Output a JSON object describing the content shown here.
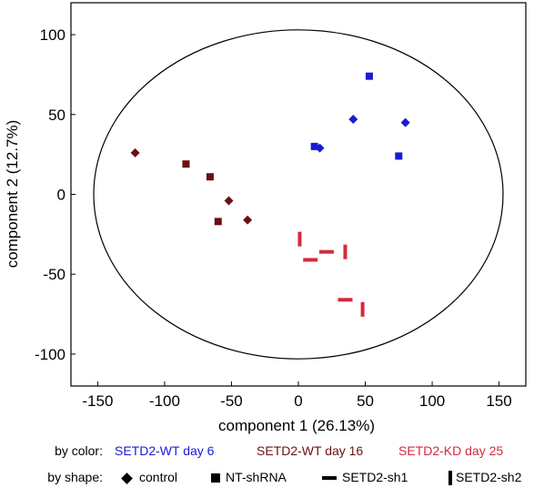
{
  "chart_data": {
    "type": "scatter",
    "xlabel": "component 1 (26.13%)",
    "ylabel": "component 2 (12.7%)",
    "xlim": [
      -170,
      170
    ],
    "ylim": [
      -120,
      120
    ],
    "xticks": [
      -150,
      -100,
      -50,
      0,
      50,
      100,
      150
    ],
    "yticks": [
      100,
      50,
      0,
      -50,
      -100
    ],
    "ellipse": {
      "center": [
        0,
        0
      ],
      "rx": 153,
      "ry": 103
    },
    "color_legend": {
      "label": "by color:",
      "entries": [
        {
          "name": "SETD2-WT day 6",
          "color": "#1a1ad6"
        },
        {
          "name": "SETD2-WT day 16",
          "color": "#6b1010"
        },
        {
          "name": "SETD2-KD day 25",
          "color": "#d42a3a"
        }
      ]
    },
    "shape_legend": {
      "label": "by shape:",
      "entries": [
        {
          "name": "control",
          "shape": "diamond"
        },
        {
          "name": "NT-shRNA",
          "shape": "square"
        },
        {
          "name": "SETD2-sh1",
          "shape": "hbar"
        },
        {
          "name": "SETD2-sh2",
          "shape": "vbar"
        }
      ]
    },
    "points": [
      {
        "x": 53,
        "y": 74,
        "group": "SETD2-WT day 6",
        "shape": "square"
      },
      {
        "x": 41,
        "y": 47,
        "group": "SETD2-WT day 6",
        "shape": "diamond"
      },
      {
        "x": 80,
        "y": 45,
        "group": "SETD2-WT day 6",
        "shape": "diamond"
      },
      {
        "x": 12,
        "y": 30,
        "group": "SETD2-WT day 6",
        "shape": "square"
      },
      {
        "x": 16,
        "y": 29,
        "group": "SETD2-WT day 6",
        "shape": "diamond"
      },
      {
        "x": 75,
        "y": 24,
        "group": "SETD2-WT day 6",
        "shape": "square"
      },
      {
        "x": -122,
        "y": 26,
        "group": "SETD2-WT day 16",
        "shape": "diamond"
      },
      {
        "x": -84,
        "y": 19,
        "group": "SETD2-WT day 16",
        "shape": "square"
      },
      {
        "x": -66,
        "y": 11,
        "group": "SETD2-WT day 16",
        "shape": "square"
      },
      {
        "x": -52,
        "y": -4,
        "group": "SETD2-WT day 16",
        "shape": "diamond"
      },
      {
        "x": -60,
        "y": -17,
        "group": "SETD2-WT day 16",
        "shape": "square"
      },
      {
        "x": -38,
        "y": -16,
        "group": "SETD2-WT day 16",
        "shape": "diamond"
      },
      {
        "x": 1,
        "y": -28,
        "group": "SETD2-KD day 25",
        "shape": "vbar"
      },
      {
        "x": 21,
        "y": -36,
        "group": "SETD2-KD day 25",
        "shape": "hbar"
      },
      {
        "x": 35,
        "y": -36,
        "group": "SETD2-KD day 25",
        "shape": "vbar"
      },
      {
        "x": 9,
        "y": -41,
        "group": "SETD2-KD day 25",
        "shape": "hbar"
      },
      {
        "x": 35,
        "y": -66,
        "group": "SETD2-KD day 25",
        "shape": "hbar"
      },
      {
        "x": 48,
        "y": -72,
        "group": "SETD2-KD day 25",
        "shape": "vbar"
      }
    ]
  }
}
